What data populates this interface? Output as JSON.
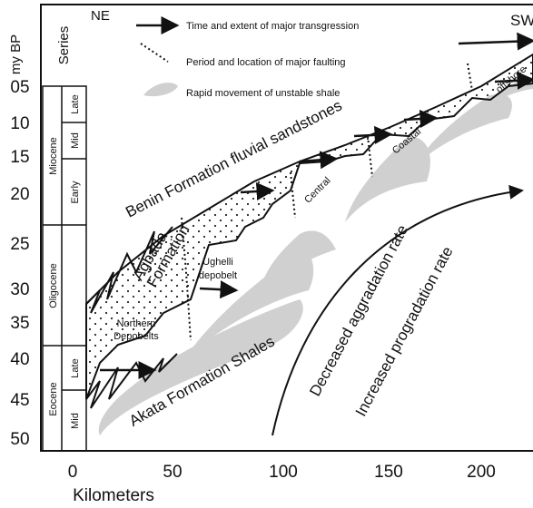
{
  "axis": {
    "title": "my BP",
    "series_header": "Series",
    "ticks": [
      "05",
      "10",
      "15",
      "20",
      "25",
      "30",
      "35",
      "40",
      "45",
      "50"
    ],
    "x_ticks": [
      "0",
      "50",
      "100",
      "150",
      "200"
    ],
    "x_title": "Kilometers"
  },
  "epochs": [
    {
      "name": "Miocene",
      "stages": [
        "Late",
        "Mid",
        "Early"
      ]
    },
    {
      "name": "Oligocene"
    },
    {
      "name": "Eocene",
      "stages": [
        "Late",
        "Mid"
      ]
    }
  ],
  "directions": {
    "left": "NE",
    "right": "SW"
  },
  "legend": [
    "Time and extent of major transgression",
    "Period and location of major faulting",
    "Rapid movement of unstable shale"
  ],
  "labels": {
    "benin": "Benin Formation fluvial sandstones",
    "agbada": [
      "Agbada",
      "Formation"
    ],
    "akata": "Akata Formation Shales",
    "ughelli": [
      "Ughelli",
      "depobelt"
    ],
    "northern": [
      "Northern",
      "Depobelts"
    ],
    "central": "Central",
    "coastal": "Coastal",
    "offshore": "offshore",
    "aggradation": "Decreased aggradation rate",
    "progradation": "Increased progradation rate"
  }
}
